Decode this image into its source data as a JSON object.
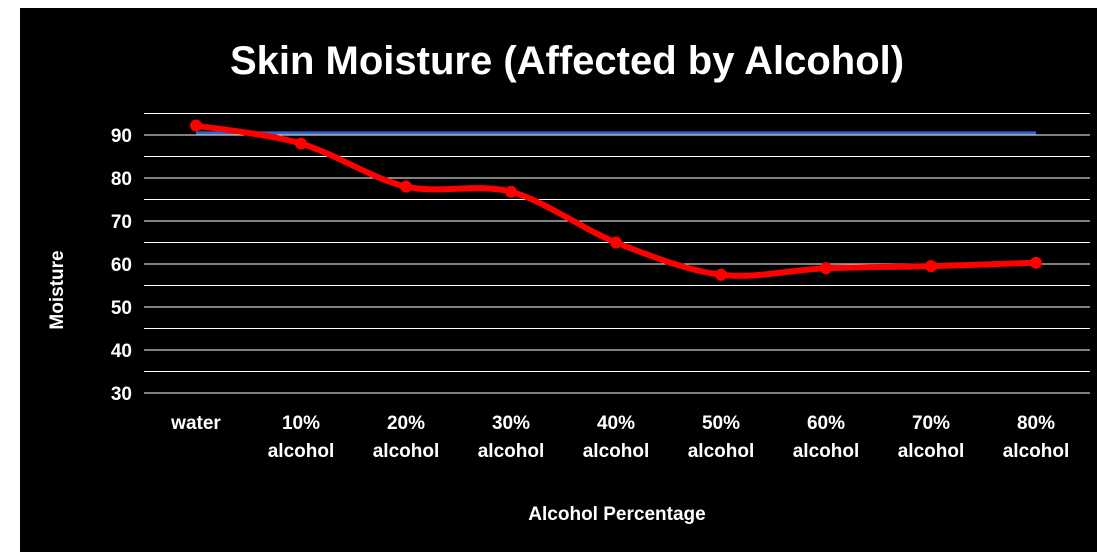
{
  "chart_data": {
    "type": "line",
    "title": "Skin Moisture (Affected by Alcohol)",
    "xlabel": "Alcohol Percentage",
    "ylabel": "Moisture",
    "categories": [
      [
        "water"
      ],
      [
        "10%",
        "alcohol"
      ],
      [
        "20%",
        "alcohol"
      ],
      [
        "30%",
        "alcohol"
      ],
      [
        "40%",
        "alcohol"
      ],
      [
        "50%",
        "alcohol"
      ],
      [
        "60%",
        "alcohol"
      ],
      [
        "70%",
        "alcohol"
      ],
      [
        "80%",
        "alcohol"
      ]
    ],
    "yticks": [
      30,
      40,
      50,
      60,
      70,
      80,
      90
    ],
    "ylim": [
      30,
      95
    ],
    "grid": true,
    "legend": "none",
    "series": [
      {
        "values": [
          92.2,
          88.0,
          78.0,
          76.8,
          65.0,
          57.5,
          59.0,
          59.5,
          60.3
        ],
        "color": "#ff0000",
        "smooth": true,
        "markers": true
      },
      {
        "values": [
          90.5,
          90.5,
          90.5,
          90.5,
          90.5,
          90.5,
          90.5,
          90.5,
          90.5
        ],
        "color": "#3366cc",
        "smooth": false,
        "markers": false
      }
    ],
    "background": "#000000",
    "gridline_color": "#ffffff"
  }
}
